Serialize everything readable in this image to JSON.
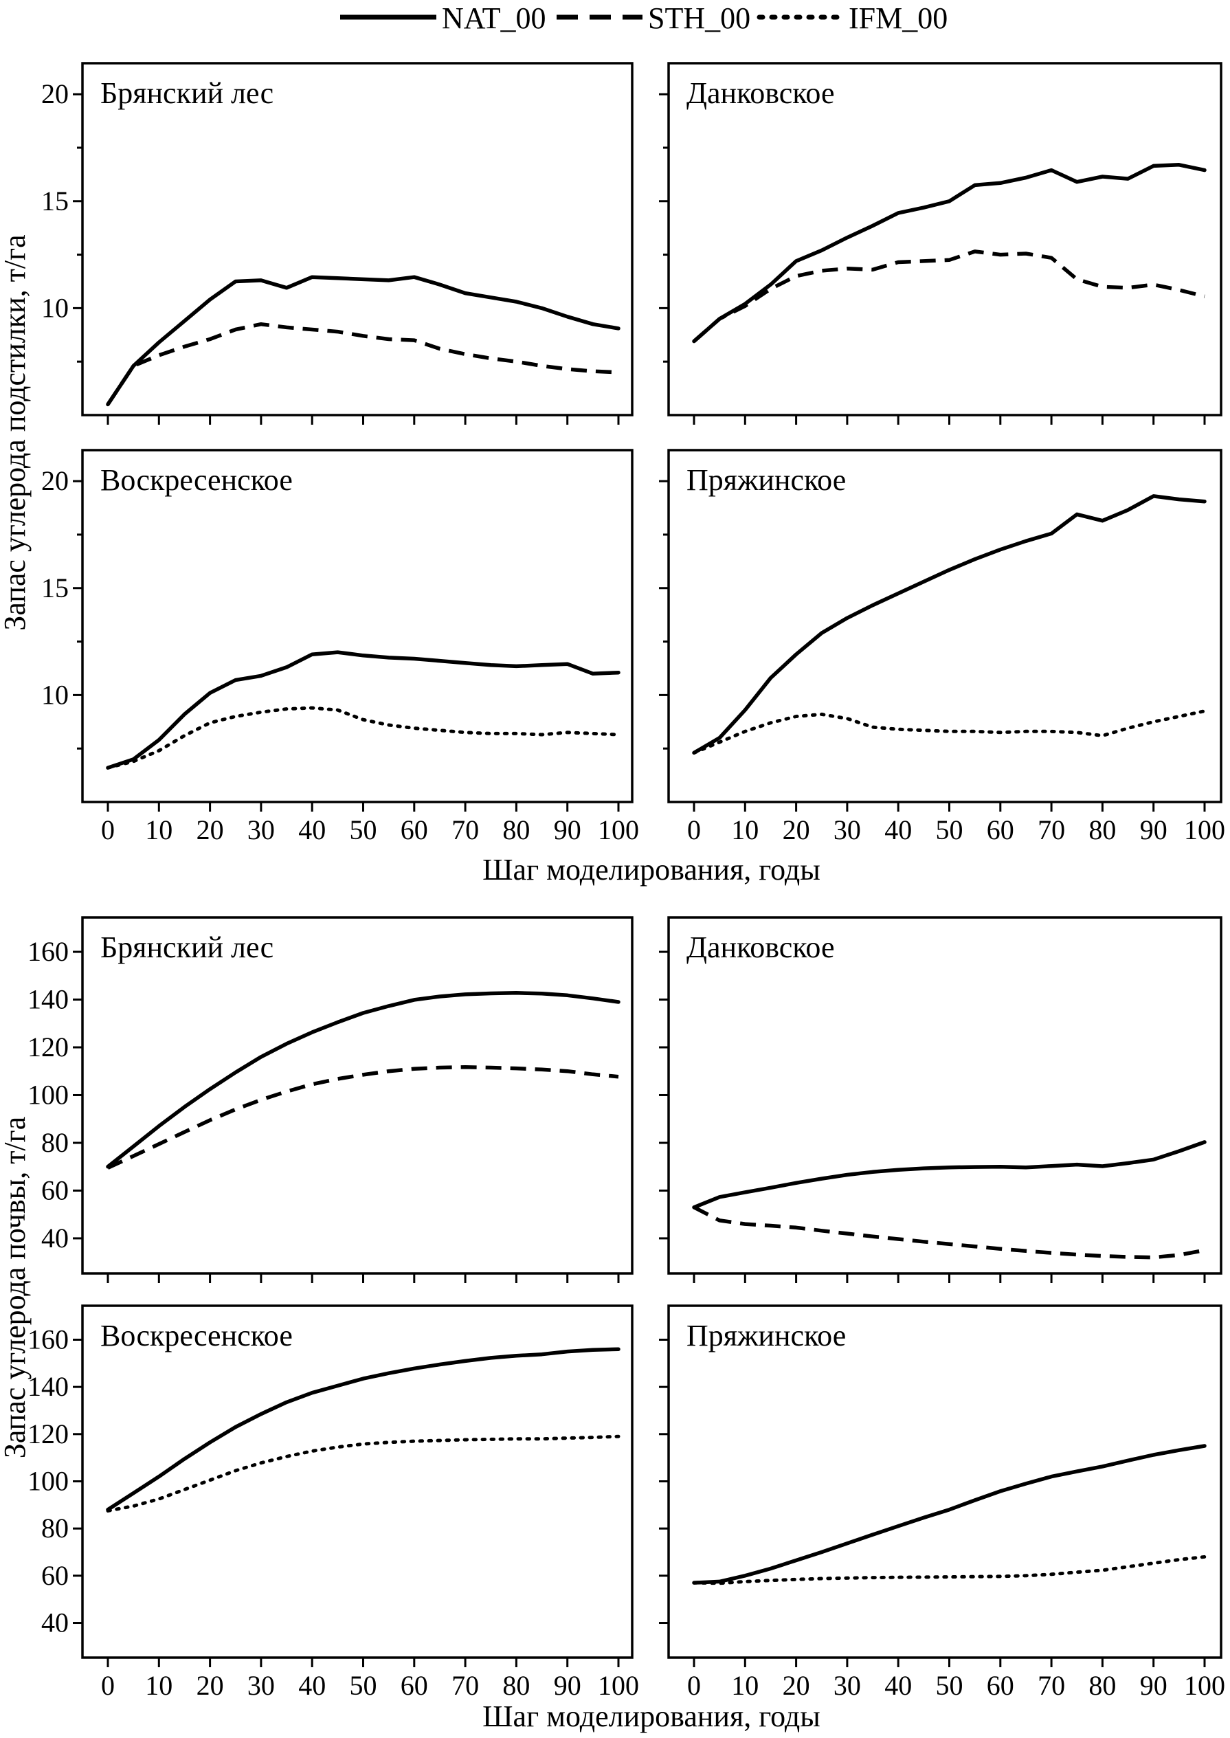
{
  "colors": {
    "line": "#000000",
    "text": "#000000",
    "background": "#ffffff"
  },
  "chart_data": {
    "type": "line",
    "layout": "2 groups of 2x2 panels, shared axes, legend top",
    "xlabel": "Шаг моделирования, годы",
    "x_ticks": [
      0,
      10,
      20,
      30,
      40,
      50,
      60,
      70,
      80,
      90,
      100
    ],
    "x": [
      0,
      5,
      10,
      15,
      20,
      25,
      30,
      35,
      40,
      45,
      50,
      55,
      60,
      65,
      70,
      75,
      80,
      85,
      90,
      95,
      100
    ],
    "legend": {
      "position": "top",
      "entries": [
        {
          "label": "NAT_00",
          "style": "solid"
        },
        {
          "label": "STH_00",
          "style": "dashed"
        },
        {
          "label": "IFM_00",
          "style": "dotted"
        }
      ]
    },
    "groups": [
      {
        "ylabel": "Запас углерода подстилки, т/га",
        "ylim": [
          5.0,
          21.45
        ],
        "yticks": [
          10,
          15,
          20
        ],
        "yminor": [
          7.5,
          12.5,
          17.5
        ],
        "panels": [
          {
            "title": "Брянский лес",
            "series": [
              {
                "name": "NAT_00",
                "style": "solid",
                "values": [
                  5.5,
                  7.3,
                  8.4,
                  9.4,
                  10.4,
                  11.25,
                  11.3,
                  10.95,
                  11.45,
                  11.4,
                  11.35,
                  11.3,
                  11.45,
                  11.1,
                  10.7,
                  10.5,
                  10.3,
                  10.0,
                  9.6,
                  9.25,
                  9.05
                ]
              },
              {
                "name": "STH_00",
                "style": "dashed",
                "values": [
                  5.5,
                  7.3,
                  7.8,
                  8.2,
                  8.55,
                  9.0,
                  9.25,
                  9.1,
                  9.0,
                  8.9,
                  8.7,
                  8.55,
                  8.5,
                  8.1,
                  7.85,
                  7.65,
                  7.5,
                  7.3,
                  7.15,
                  7.05,
                  7.0
                ]
              }
            ]
          },
          {
            "title": "Данковское",
            "series": [
              {
                "name": "NAT_00",
                "style": "solid",
                "values": [
                  8.45,
                  9.5,
                  10.2,
                  11.1,
                  12.2,
                  12.7,
                  13.3,
                  13.85,
                  14.45,
                  14.7,
                  15.0,
                  15.75,
                  15.85,
                  16.1,
                  16.45,
                  15.9,
                  16.15,
                  16.05,
                  16.65,
                  16.7,
                  16.45
                ]
              },
              {
                "name": "STH_00",
                "style": "dashed",
                "values": [
                  8.45,
                  9.5,
                  10.1,
                  10.9,
                  11.5,
                  11.75,
                  11.85,
                  11.8,
                  12.15,
                  12.2,
                  12.25,
                  12.65,
                  12.5,
                  12.55,
                  12.35,
                  11.35,
                  11.0,
                  10.95,
                  11.1,
                  10.85,
                  10.55
                ]
              }
            ]
          },
          {
            "title": "Воскресенское",
            "series": [
              {
                "name": "NAT_00",
                "style": "solid",
                "values": [
                  6.6,
                  7.0,
                  7.9,
                  9.1,
                  10.1,
                  10.7,
                  10.9,
                  11.3,
                  11.9,
                  12.0,
                  11.85,
                  11.75,
                  11.7,
                  11.6,
                  11.5,
                  11.4,
                  11.35,
                  11.4,
                  11.45,
                  11.0,
                  11.05
                ]
              },
              {
                "name": "IFM_00",
                "style": "dotted",
                "values": [
                  6.6,
                  6.9,
                  7.4,
                  8.1,
                  8.7,
                  9.0,
                  9.2,
                  9.35,
                  9.4,
                  9.3,
                  8.85,
                  8.6,
                  8.45,
                  8.35,
                  8.25,
                  8.2,
                  8.2,
                  8.15,
                  8.25,
                  8.2,
                  8.15
                ]
              }
            ]
          },
          {
            "title": "Пряжинское",
            "series": [
              {
                "name": "NAT_00",
                "style": "solid",
                "values": [
                  7.3,
                  8.0,
                  9.3,
                  10.8,
                  11.9,
                  12.9,
                  13.6,
                  14.2,
                  14.75,
                  15.3,
                  15.85,
                  16.35,
                  16.8,
                  17.2,
                  17.55,
                  18.45,
                  18.15,
                  18.65,
                  19.3,
                  19.15,
                  19.05
                ]
              },
              {
                "name": "IFM_00",
                "style": "dotted",
                "values": [
                  7.3,
                  7.8,
                  8.3,
                  8.7,
                  9.0,
                  9.1,
                  8.9,
                  8.5,
                  8.4,
                  8.35,
                  8.3,
                  8.3,
                  8.25,
                  8.3,
                  8.3,
                  8.25,
                  8.1,
                  8.45,
                  8.75,
                  9.0,
                  9.25
                ]
              }
            ]
          }
        ]
      },
      {
        "ylabel": "Запас углерода почвы, т/га",
        "ylim": [
          25.3,
          174.4
        ],
        "yticks": [
          40,
          60,
          80,
          100,
          120,
          140,
          160
        ],
        "yminor": [],
        "panels": [
          {
            "title": "Брянский лес",
            "series": [
              {
                "name": "NAT_00",
                "style": "solid",
                "values": [
                  70,
                  78.5,
                  87,
                  95,
                  102.5,
                  109.5,
                  116,
                  121.5,
                  126.3,
                  130.5,
                  134.4,
                  137.3,
                  139.9,
                  141.3,
                  142.2,
                  142.6,
                  142.8,
                  142.5,
                  141.8,
                  140.5,
                  139
                ]
              },
              {
                "name": "STH_00",
                "style": "dashed",
                "values": [
                  69.5,
                  74.5,
                  79.5,
                  84.5,
                  89.5,
                  94,
                  98,
                  101.5,
                  104.5,
                  106.8,
                  108.5,
                  110,
                  111,
                  111.5,
                  111.7,
                  111.5,
                  111.2,
                  110.7,
                  110,
                  108.7,
                  107.7
                ]
              }
            ]
          },
          {
            "title": "Данковское",
            "series": [
              {
                "name": "NAT_00",
                "style": "solid",
                "values": [
                  53,
                  57.3,
                  59.3,
                  61.2,
                  63.2,
                  65,
                  66.6,
                  67.8,
                  68.7,
                  69.3,
                  69.7,
                  69.9,
                  70,
                  69.7,
                  70.3,
                  70.9,
                  70.2,
                  71.5,
                  73,
                  76.5,
                  80.3
                ]
              },
              {
                "name": "STH_00",
                "style": "dashed",
                "values": [
                  53,
                  47.5,
                  46,
                  45.3,
                  44.5,
                  43.2,
                  42,
                  40.8,
                  39.7,
                  38.6,
                  37.6,
                  36.6,
                  35.6,
                  34.7,
                  33.9,
                  33.2,
                  32.6,
                  32.2,
                  32.0,
                  33.0,
                  35
                ]
              }
            ]
          },
          {
            "title": "Воскресенское",
            "series": [
              {
                "name": "NAT_00",
                "style": "solid",
                "values": [
                  88,
                  95,
                  102,
                  109.5,
                  116.5,
                  123,
                  128.5,
                  133.5,
                  137.5,
                  140.5,
                  143.5,
                  145.8,
                  147.8,
                  149.5,
                  151,
                  152.3,
                  153.2,
                  153.8,
                  155,
                  155.7,
                  156
                ]
              },
              {
                "name": "IFM_00",
                "style": "dotted",
                "values": [
                  87.5,
                  89.5,
                  92.5,
                  96.5,
                  100.5,
                  104.5,
                  107.8,
                  110.5,
                  112.8,
                  114.5,
                  115.8,
                  116.5,
                  117,
                  117.3,
                  117.6,
                  117.8,
                  118,
                  118,
                  118.3,
                  118.6,
                  119
                ]
              }
            ]
          },
          {
            "title": "Пряжинское",
            "series": [
              {
                "name": "NAT_00",
                "style": "solid",
                "values": [
                  57,
                  57.5,
                  60,
                  63,
                  66.5,
                  70,
                  73.7,
                  77.4,
                  81,
                  84.6,
                  88,
                  92,
                  95.8,
                  99,
                  102,
                  104.2,
                  106.3,
                  108.8,
                  111.2,
                  113.2,
                  115
                ]
              },
              {
                "name": "IFM_00",
                "style": "dotted",
                "values": [
                  57,
                  56.8,
                  57.5,
                  58,
                  58.4,
                  58.8,
                  59,
                  59.2,
                  59.3,
                  59.4,
                  59.5,
                  59.6,
                  59.7,
                  60,
                  60.6,
                  61.5,
                  62.3,
                  63.8,
                  65.3,
                  66.8,
                  68
                ]
              }
            ]
          }
        ]
      }
    ]
  }
}
